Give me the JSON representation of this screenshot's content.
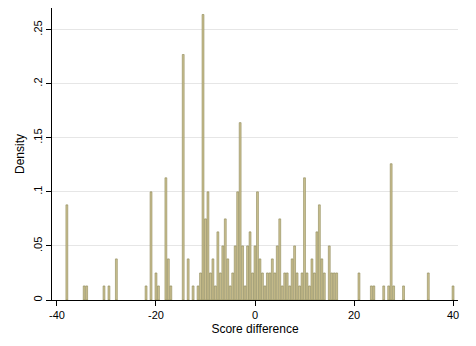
{
  "chart_data": {
    "type": "bar",
    "x_label": "Score difference",
    "y_label": "Density",
    "x": [
      -38,
      -34.5,
      -34,
      -30.5,
      -29.5,
      -28,
      -22,
      -21,
      -20,
      -19.5,
      -18,
      -17.5,
      -17,
      -14.5,
      -13.5,
      -12.5,
      -11.5,
      -11,
      -10.5,
      -10,
      -9.5,
      -9,
      -8.5,
      -8,
      -7.5,
      -7,
      -6.5,
      -6,
      -5.5,
      -5,
      -4.5,
      -4,
      -3.5,
      -3,
      -2.5,
      -2,
      -1.5,
      -1,
      -0.5,
      0,
      0.5,
      1,
      1.5,
      2,
      2.5,
      3,
      3.5,
      4,
      4.5,
      5,
      5.5,
      6,
      6.5,
      7,
      7.5,
      8,
      8.5,
      9,
      9.5,
      10,
      10.5,
      11,
      11.5,
      12,
      12.5,
      13,
      13.5,
      14,
      15,
      15.5,
      16,
      16.5,
      21,
      23.5,
      24,
      26,
      27,
      27.5,
      28,
      30,
      35,
      40
    ],
    "values": [
      0.088,
      0.013,
      0.013,
      0.013,
      0.013,
      0.038,
      0.013,
      0.1,
      0.025,
      0.013,
      0.113,
      0.038,
      0.013,
      0.227,
      0.038,
      0.013,
      0.013,
      0.025,
      0.264,
      0.075,
      0.1,
      0.025,
      0.038,
      0.013,
      0.063,
      0.025,
      0.05,
      0.075,
      0.038,
      0.013,
      0.025,
      0.05,
      0.1,
      0.164,
      0.05,
      0.013,
      0.05,
      0.063,
      0.025,
      0.05,
      0.1,
      0.038,
      0.025,
      0.013,
      0.025,
      0.025,
      0.038,
      0.025,
      0.05,
      0.075,
      0.013,
      0.025,
      0.025,
      0.013,
      0.038,
      0.05,
      0.025,
      0.013,
      0.025,
      0.113,
      0.025,
      0.013,
      0.038,
      0.025,
      0.063,
      0.088,
      0.038,
      0.025,
      0.05,
      0.025,
      0.025,
      0.025,
      0.025,
      0.013,
      0.013,
      0.013,
      0.013,
      0.126,
      0.013,
      0.013,
      0.025,
      0.013
    ],
    "color": "#cdc292",
    "xlim": [
      -41,
      41
    ],
    "xticks": [
      -40,
      -20,
      0,
      20,
      40
    ],
    "ylim": [
      0,
      0.27
    ],
    "yticks": [
      0,
      {
        "value": 0.05,
        "label": ".05"
      },
      {
        "value": 0.1,
        "label": ".1"
      },
      {
        "value": 0.15,
        "label": ".15"
      },
      {
        "value": 0.2,
        "label": ".2"
      },
      {
        "value": 0.25,
        "label": ".25"
      }
    ],
    "grid": true
  }
}
